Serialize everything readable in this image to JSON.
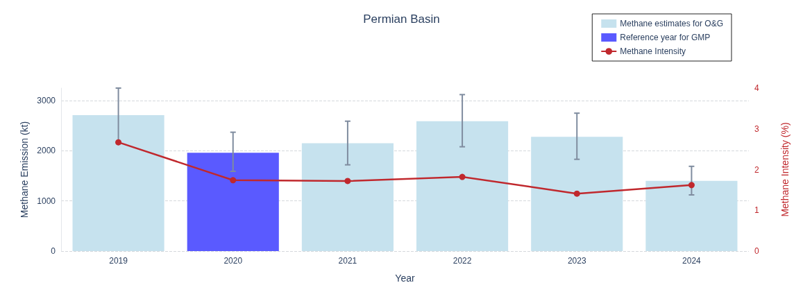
{
  "chart_data": {
    "type": "bar",
    "title": "Permian Basin",
    "xlabel": "Year",
    "ylabel": "Methane Emission (kt)",
    "y2label": "Methane Intensity (%)",
    "categories": [
      "2019",
      "2020",
      "2021",
      "2022",
      "2023",
      "2024"
    ],
    "stacked": true,
    "series": [
      {
        "name": "Methane estimates for O&G",
        "color": "#c6e2ee",
        "values": [
          2710,
          null,
          2150,
          2590,
          2280,
          1400
        ],
        "errors": [
          [
            2170,
            3250
          ],
          null,
          [
            1720,
            2590
          ],
          [
            2080,
            3120
          ],
          [
            1830,
            2750
          ],
          [
            1120,
            1690
          ]
        ]
      },
      {
        "name": "Reference year for GMP",
        "color": "#5a5aff",
        "values": [
          null,
          1960,
          null,
          null,
          null,
          null
        ],
        "errors": [
          null,
          [
            1590,
            2370
          ],
          null,
          null,
          null,
          null
        ]
      },
      {
        "name": "Methane Intensity",
        "type": "line",
        "axis": "y2",
        "color": "#c0282d",
        "marker": "circle",
        "values": [
          2.67,
          1.74,
          1.72,
          1.82,
          1.41,
          1.62
        ]
      }
    ],
    "ylim": [
      0,
      3250
    ],
    "yticks": [
      0,
      1000,
      2000,
      3000
    ],
    "y2lim": [
      0,
      4
    ],
    "y2ticks": [
      0,
      1,
      2,
      3,
      4
    ],
    "grid": "y",
    "legend": "top right"
  }
}
